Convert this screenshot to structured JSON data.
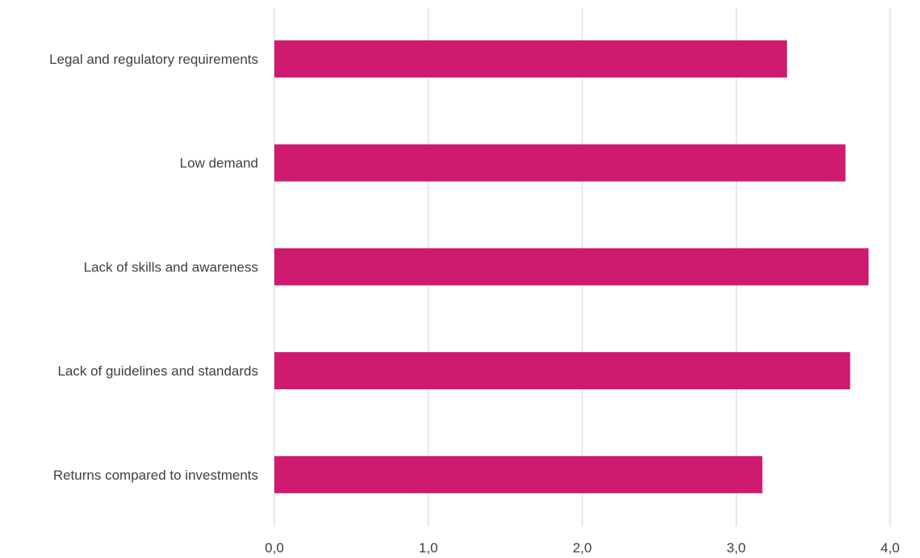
{
  "chart_data": {
    "type": "bar",
    "orientation": "horizontal",
    "title": "",
    "xlabel": "",
    "ylabel": "",
    "categories": [
      "Legal and regulatory requirements",
      "Low demand",
      "Lack of skills and awareness",
      "Lack of guidelines and standards",
      "Returns compared to investments"
    ],
    "values": [
      3.33,
      3.71,
      3.86,
      3.74,
      3.17
    ],
    "xlim": [
      0,
      4
    ],
    "ticks": [
      0,
      1,
      2,
      3,
      4
    ],
    "tick_labels": [
      "0,0",
      "1,0",
      "2,0",
      "3,0",
      "4,0"
    ],
    "grid": true,
    "legend": "none",
    "bar_color": "#CE1A6F",
    "grid_color": "#D9D9D9",
    "text_color": "#404040"
  }
}
